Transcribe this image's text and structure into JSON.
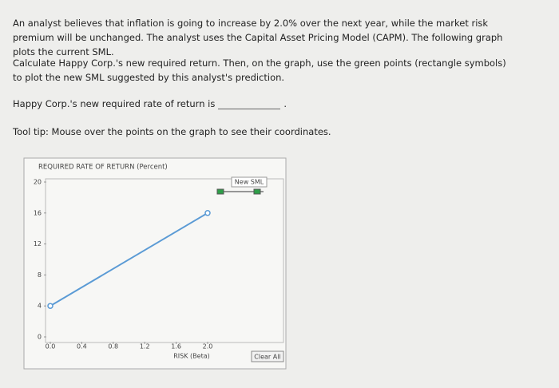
{
  "instructions": {
    "paragraph_1": "An analyst believes that inflation is going to increase by 2.0% over the next year, while the market risk premium will be unchanged. The analyst uses the Capital Asset Pricing Model (CAPM). The following graph plots the current SML.",
    "paragraph_2": "Calculate Happy Corp.'s new required return. Then, on the graph, use the green points (rectangle symbols) to plot the new SML suggested by this analyst's prediction.",
    "question": {
      "before": "Happy Corp.'s new required rate of return is",
      "after": "."
    },
    "tooltip": "Tool tip: Mouse over the points on the graph to see their coordinates."
  },
  "chart_data": {
    "type": "line",
    "y_label": "REQUIRED RATE OF RETURN (Percent)",
    "x_label": "RISK (Beta)",
    "x": [
      0,
      2
    ],
    "series": [
      {
        "color": "#5b9bd5",
        "values": [
          4,
          16
        ]
      }
    ],
    "xlim": [
      0,
      2.0
    ],
    "ylim": [
      0,
      20
    ],
    "xticks": [
      {
        "value": 0,
        "label": "0.0"
      },
      {
        "value": 0.4,
        "label": "0.4"
      },
      {
        "value": 0.8,
        "label": "0.8"
      },
      {
        "value": 1.2,
        "label": "1.2"
      },
      {
        "value": 1.6,
        "label": "1.6"
      },
      {
        "value": 2,
        "label": "2.0"
      }
    ],
    "yticks": [
      0,
      4,
      8,
      12,
      16,
      20
    ],
    "legend": {
      "label": "New SML",
      "color": "#2e9e48"
    },
    "button": "Clear All"
  }
}
